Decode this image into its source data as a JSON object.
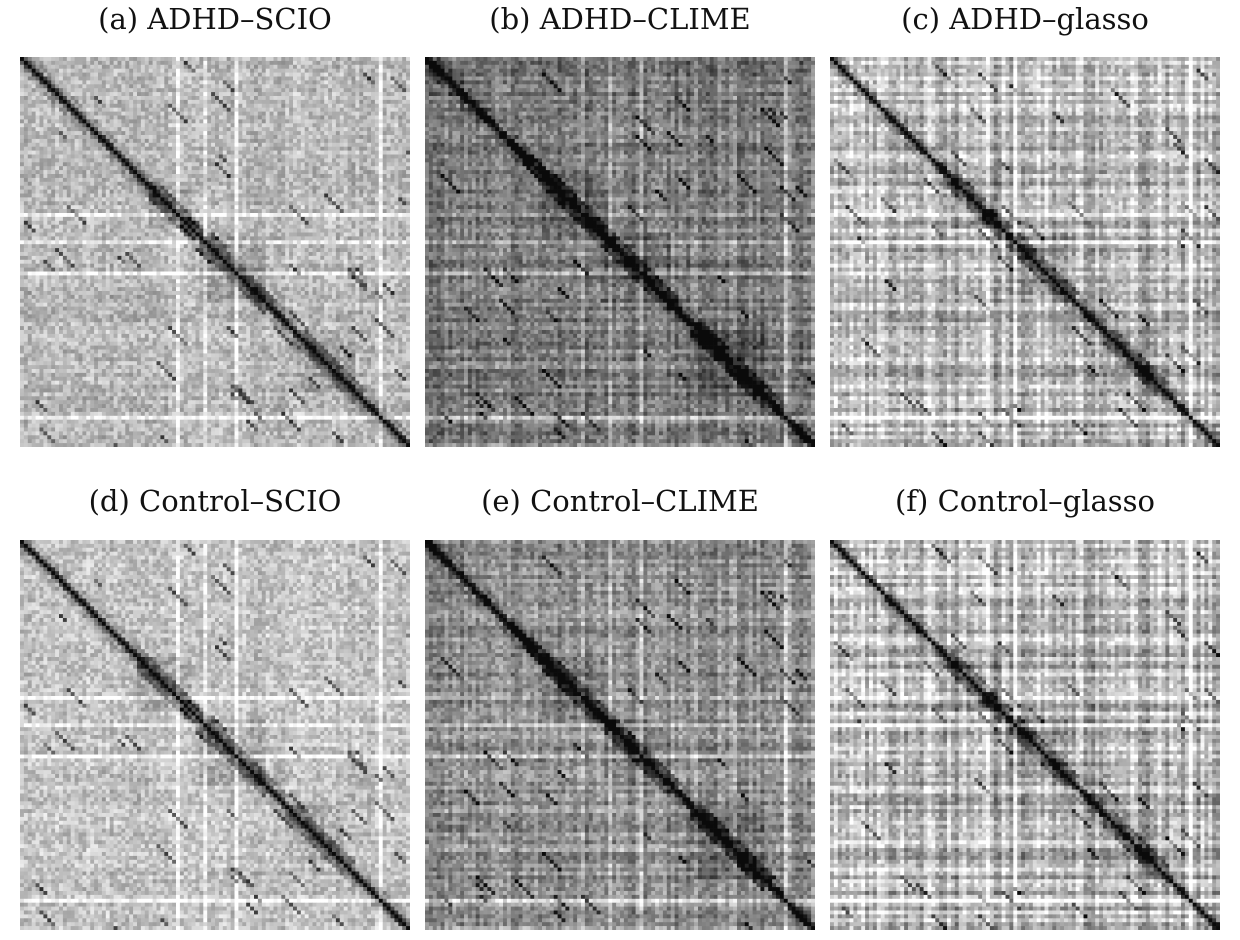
{
  "chart_data": [
    {
      "type": "heatmap",
      "title": "(a) ADHD–SCIO",
      "base": 0.28,
      "banding": 0.04,
      "stripes": [
        0.4,
        0.55
      ],
      "diagonal": "dark",
      "blocks": [
        [
          0.33,
          0.43
        ],
        [
          0.46,
          0.62
        ],
        [
          0.7,
          0.85
        ]
      ],
      "grid": false
    },
    {
      "type": "heatmap",
      "title": "(b) ADHD–CLIME",
      "base": 0.52,
      "banding": 0.1,
      "stripes": [
        0.4,
        0.55
      ],
      "diagonal": "dark",
      "blocks": [
        [
          0.3,
          0.45
        ],
        [
          0.45,
          0.62
        ],
        [
          0.68,
          0.86
        ]
      ],
      "grid": false
    },
    {
      "type": "heatmap",
      "title": "(c) ADHD–glasso",
      "base": 0.3,
      "banding": 0.16,
      "stripes": [
        0.4,
        0.55
      ],
      "diagonal": "dark",
      "blocks": [
        [
          0.3,
          0.43
        ],
        [
          0.45,
          0.6
        ],
        [
          0.7,
          0.85
        ]
      ],
      "grid": false
    },
    {
      "type": "heatmap",
      "title": "(d) Control–SCIO",
      "base": 0.24,
      "banding": 0.04,
      "stripes": [
        0.4,
        0.55
      ],
      "diagonal": "dark",
      "blocks": [
        [
          0.3,
          0.43
        ],
        [
          0.46,
          0.62
        ],
        [
          0.68,
          0.82
        ]
      ],
      "grid": false
    },
    {
      "type": "heatmap",
      "title": "(e) Control–CLIME",
      "base": 0.44,
      "banding": 0.1,
      "stripes": [
        0.4,
        0.55
      ],
      "diagonal": "dark",
      "blocks": [
        [
          0.3,
          0.45
        ],
        [
          0.46,
          0.62
        ],
        [
          0.68,
          0.86
        ]
      ],
      "grid": false
    },
    {
      "type": "heatmap",
      "title": "(f) Control–glasso",
      "base": 0.3,
      "banding": 0.18,
      "stripes": [
        0.4,
        0.55
      ],
      "diagonal": "dark",
      "blocks": [
        [
          0.3,
          0.43
        ],
        [
          0.45,
          0.6
        ],
        [
          0.7,
          0.85
        ]
      ],
      "grid": false
    }
  ]
}
